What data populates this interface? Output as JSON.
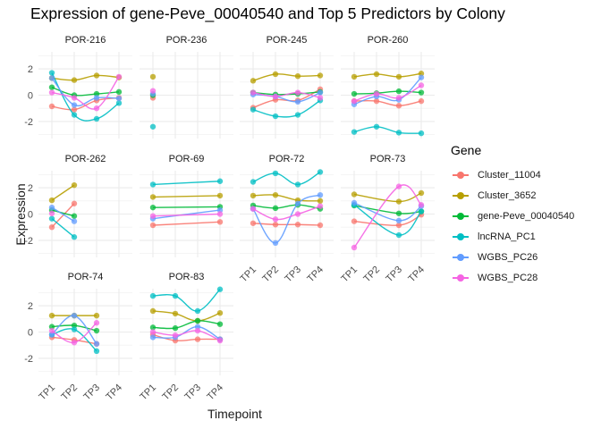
{
  "chart_data": {
    "type": "line",
    "title": "Expression of gene-Peve_00040540 and Top 5 Predictors by Colony",
    "xlabel": "Timepoint",
    "ylabel": "Expression",
    "x": [
      "TP1",
      "TP2",
      "TP3",
      "TP4"
    ],
    "yticks": [
      2,
      0,
      -2
    ],
    "ylim": [
      -3.3,
      3.3
    ],
    "grid": true,
    "legend": {
      "title": "Gene",
      "placement": "right"
    },
    "series_names": [
      "Cluster_11004",
      "Cluster_3652",
      "gene-Peve_00040540",
      "lncRNA_PC1",
      "WGBS_PC26",
      "WGBS_PC28"
    ],
    "series_colors": [
      "#F8766D",
      "#B79F00",
      "#00BA38",
      "#00BFC4",
      "#619CFF",
      "#F564E3"
    ],
    "facets": [
      {
        "colony": "POR-216",
        "series": {
          "Cluster_11004": [
            -0.85,
            -1.1,
            -0.4,
            -0.2
          ],
          "Cluster_3652": [
            1.3,
            1.15,
            1.5,
            1.35
          ],
          "gene-Peve_00040540": [
            0.6,
            0.0,
            0.1,
            0.25
          ],
          "lncRNA_PC1": [
            1.7,
            -1.5,
            -1.8,
            -0.6
          ],
          "WGBS_PC26": [
            1.3,
            -0.75,
            -0.2,
            -0.25
          ],
          "WGBS_PC28": [
            0.2,
            -0.2,
            -1.0,
            1.4
          ]
        }
      },
      {
        "colony": "POR-236",
        "series": {
          "Cluster_11004": [
            -0.2,
            null,
            null,
            null
          ],
          "Cluster_3652": [
            1.4,
            null,
            null,
            null
          ],
          "gene-Peve_00040540": [
            0.0,
            null,
            null,
            null
          ],
          "lncRNA_PC1": [
            -2.4,
            null,
            null,
            null
          ],
          "WGBS_PC26": [
            0.1,
            null,
            null,
            null
          ],
          "WGBS_PC28": [
            0.33,
            null,
            null,
            null
          ]
        }
      },
      {
        "colony": "POR-245",
        "series": {
          "Cluster_11004": [
            -0.95,
            -0.35,
            -0.4,
            0.45
          ],
          "Cluster_3652": [
            1.1,
            1.6,
            1.45,
            1.5
          ],
          "gene-Peve_00040540": [
            0.2,
            0.05,
            0.1,
            0.25
          ],
          "lncRNA_PC1": [
            -1.1,
            -1.6,
            -1.5,
            -0.4
          ],
          "WGBS_PC26": [
            0.05,
            -0.1,
            -0.5,
            0.2
          ],
          "WGBS_PC28": [
            0.2,
            -0.1,
            0.2,
            -0.2
          ]
        }
      },
      {
        "colony": "POR-260",
        "series": {
          "Cluster_11004": [
            -0.45,
            -0.45,
            -0.8,
            -0.45
          ],
          "Cluster_3652": [
            1.4,
            1.6,
            1.4,
            1.65
          ],
          "gene-Peve_00040540": [
            0.1,
            0.15,
            0.3,
            0.2
          ],
          "lncRNA_PC1": [
            -2.8,
            -2.4,
            -2.85,
            -2.9
          ],
          "WGBS_PC26": [
            -0.7,
            -0.1,
            -0.35,
            1.35
          ],
          "WGBS_PC28": [
            -0.45,
            0.1,
            -0.2,
            0.75
          ]
        }
      },
      {
        "colony": "POR-262",
        "series": {
          "Cluster_11004": [
            -1.0,
            0.8,
            null,
            null
          ],
          "Cluster_3652": [
            1.05,
            2.2,
            null,
            null
          ],
          "gene-Peve_00040540": [
            0.3,
            -0.15,
            null,
            null
          ],
          "lncRNA_PC1": [
            -0.35,
            -1.75,
            null,
            null
          ],
          "WGBS_PC26": [
            0.5,
            -0.55,
            null,
            null
          ],
          "WGBS_PC28": [
            0.05,
            null,
            null,
            null
          ]
        }
      },
      {
        "colony": "POR-69",
        "series": {
          "Cluster_11004": [
            -0.85,
            null,
            null,
            -0.6
          ],
          "Cluster_3652": [
            1.3,
            null,
            null,
            1.4
          ],
          "gene-Peve_00040540": [
            0.5,
            null,
            null,
            0.55
          ],
          "lncRNA_PC1": [
            2.25,
            null,
            null,
            2.5
          ],
          "WGBS_PC26": [
            -0.35,
            null,
            null,
            0.3
          ],
          "WGBS_PC28": [
            -0.15,
            null,
            null,
            0.0
          ]
        }
      },
      {
        "colony": "POR-72",
        "series": {
          "Cluster_11004": [
            -0.7,
            -0.8,
            -0.8,
            -0.85
          ],
          "Cluster_3652": [
            1.4,
            1.45,
            1.05,
            1.0
          ],
          "gene-Peve_00040540": [
            0.65,
            0.45,
            0.7,
            0.4
          ],
          "lncRNA_PC1": [
            2.45,
            3.1,
            2.25,
            3.2
          ],
          "WGBS_PC26": [
            0.4,
            -2.2,
            0.8,
            1.45
          ],
          "WGBS_PC28": [
            0.4,
            -0.4,
            0.0,
            0.6
          ]
        }
      },
      {
        "colony": "POR-73",
        "series": {
          "Cluster_11004": [
            -0.55,
            null,
            -0.85,
            -0.05
          ],
          "Cluster_3652": [
            1.5,
            null,
            0.95,
            1.6
          ],
          "gene-Peve_00040540": [
            0.65,
            null,
            0.05,
            0.2
          ],
          "lncRNA_PC1": [
            0.7,
            null,
            -1.6,
            0.2
          ],
          "WGBS_PC26": [
            0.85,
            null,
            -0.5,
            0.6
          ],
          "WGBS_PC28": [
            -2.55,
            null,
            2.1,
            0.7
          ]
        }
      },
      {
        "colony": "POR-74",
        "series": {
          "Cluster_11004": [
            -0.4,
            -0.6,
            -0.9,
            null
          ],
          "Cluster_3652": [
            1.25,
            1.25,
            1.25,
            null
          ],
          "gene-Peve_00040540": [
            0.4,
            0.5,
            0.1,
            null
          ],
          "lncRNA_PC1": [
            -0.2,
            0.2,
            -1.45,
            null
          ],
          "WGBS_PC26": [
            -0.2,
            1.25,
            -0.9,
            null
          ],
          "WGBS_PC28": [
            0.1,
            -0.8,
            0.7,
            null
          ]
        }
      },
      {
        "colony": "POR-83",
        "series": {
          "Cluster_11004": [
            -0.2,
            -0.65,
            -0.55,
            -0.55
          ],
          "Cluster_3652": [
            1.6,
            1.4,
            0.85,
            1.45
          ],
          "gene-Peve_00040540": [
            0.35,
            0.3,
            0.85,
            0.6
          ],
          "lncRNA_PC1": [
            2.75,
            2.75,
            1.6,
            3.25
          ],
          "WGBS_PC26": [
            -0.4,
            -0.4,
            0.4,
            -0.55
          ],
          "WGBS_PC28": [
            0.0,
            -0.25,
            0.1,
            -0.65
          ]
        }
      }
    ]
  },
  "legend_items": [
    {
      "label": "Cluster_11004",
      "color": "#F8766D"
    },
    {
      "label": "Cluster_3652",
      "color": "#B79F00"
    },
    {
      "label": "gene-Peve_00040540",
      "color": "#00BA38"
    },
    {
      "label": "lncRNA_PC1",
      "color": "#00BFC4"
    },
    {
      "label": "WGBS_PC26",
      "color": "#619CFF"
    },
    {
      "label": "WGBS_PC28",
      "color": "#F564E3"
    }
  ]
}
